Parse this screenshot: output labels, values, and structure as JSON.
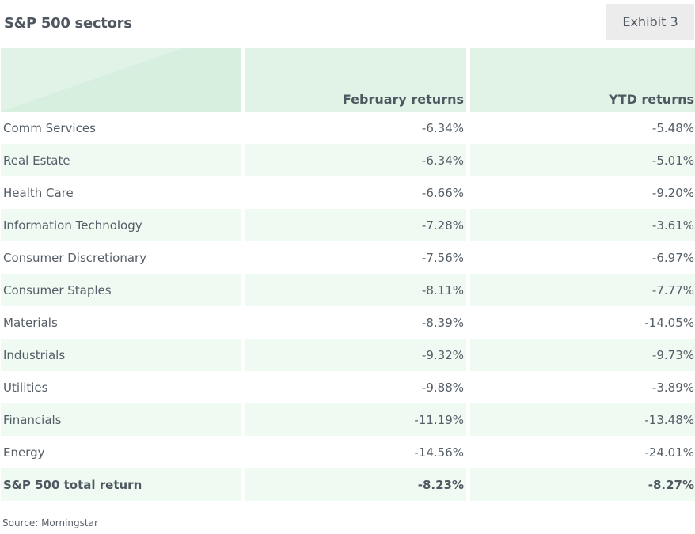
{
  "header": {
    "title": "S&P 500 sectors",
    "exhibit_label": "Exhibit 3"
  },
  "table": {
    "columns": [
      "",
      "February returns",
      "YTD returns"
    ],
    "rows": [
      {
        "sector": "Comm Services",
        "february": "-6.34%",
        "ytd": "-5.48%"
      },
      {
        "sector": "Real Estate",
        "february": "-6.34%",
        "ytd": "-5.01%"
      },
      {
        "sector": "Health Care",
        "february": "-6.66%",
        "ytd": "-9.20%"
      },
      {
        "sector": "Information Technology",
        "february": "-7.28%",
        "ytd": "-3.61%"
      },
      {
        "sector": "Consumer Discretionary",
        "february": "-7.56%",
        "ytd": "-6.97%"
      },
      {
        "sector": "Consumer Staples",
        "february": "-8.11%",
        "ytd": "-7.77%"
      },
      {
        "sector": "Materials",
        "february": "-8.39%",
        "ytd": "-14.05%"
      },
      {
        "sector": "Industrials",
        "february": "-9.32%",
        "ytd": "-9.73%"
      },
      {
        "sector": "Utilities",
        "february": "-9.88%",
        "ytd": "-3.89%"
      },
      {
        "sector": "Financials",
        "february": "-11.19%",
        "ytd": "-13.48%"
      },
      {
        "sector": "Energy",
        "february": "-14.56%",
        "ytd": "-24.01%"
      }
    ],
    "total": {
      "sector": "S&P 500 total return",
      "february": "-8.23%",
      "ytd": "-8.27%"
    }
  },
  "footer": {
    "source": "Source: Morningstar"
  },
  "colors": {
    "header_fill": "#e0f3e6",
    "stripe_fill": "#effaf2",
    "text": "#4f5861"
  }
}
